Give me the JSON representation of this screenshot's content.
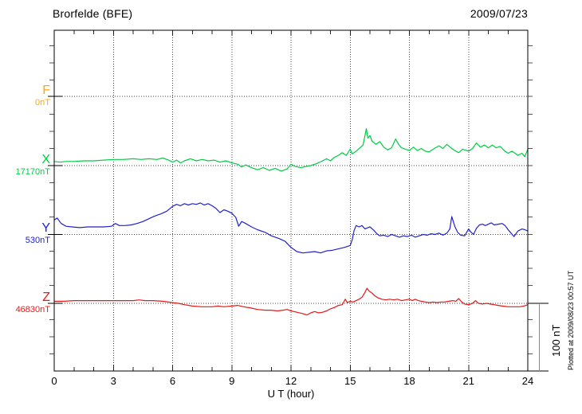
{
  "header": {
    "title": "Brorfelde (BFE)",
    "date": "2009/07/23"
  },
  "footer": {
    "plotted_at": "Plotted at 2009/08/23 00:57 UT"
  },
  "chart_data": {
    "type": "line",
    "title": "Brorfelde (BFE)",
    "date": "2009/07/23",
    "xlabel": "U T (hour)",
    "x_range": [
      0,
      24
    ],
    "x_major_ticks": [
      0,
      3,
      6,
      9,
      12,
      15,
      18,
      21,
      24
    ],
    "x_major_tick_labels": [
      "0",
      "3",
      "6",
      "9",
      "12",
      "15",
      "18",
      "21",
      "24"
    ],
    "x_minor_step_hours": 1,
    "grid": "dotted vertical lines every 3 h; dotted horizontal line at each component baseline",
    "legend_position": "left margin, one colored label per component",
    "scale_bar": {
      "label": "100 nT",
      "nT": 100
    },
    "plotted_at": "Plotted at 2009/08/23 00:57 UT",
    "value_unit": "nT (offset from the baseline value shown under each component letter)",
    "series": [
      {
        "name": "F",
        "base_label": "0nT",
        "color": "#FFAA00",
        "note": "no data plotted for F (flat dotted baseline only)",
        "points": []
      },
      {
        "name": "X",
        "base_label": "17170nT",
        "color": "#00CC44",
        "points": [
          [
            0,
            6
          ],
          [
            0.3,
            5
          ],
          [
            0.6,
            6
          ],
          [
            1,
            6
          ],
          [
            1.5,
            7
          ],
          [
            2,
            7
          ],
          [
            2.5,
            8
          ],
          [
            3,
            9
          ],
          [
            3.5,
            9
          ],
          [
            4,
            10
          ],
          [
            4.4,
            9
          ],
          [
            4.8,
            10
          ],
          [
            5.2,
            9
          ],
          [
            5.5,
            11
          ],
          [
            5.8,
            8
          ],
          [
            6,
            5
          ],
          [
            6.2,
            8
          ],
          [
            6.4,
            4
          ],
          [
            6.6,
            7
          ],
          [
            6.9,
            10
          ],
          [
            7.2,
            7
          ],
          [
            7.5,
            9
          ],
          [
            7.8,
            7
          ],
          [
            8.1,
            8
          ],
          [
            8.4,
            5
          ],
          [
            8.7,
            7
          ],
          [
            9,
            4
          ],
          [
            9.3,
            2
          ],
          [
            9.5,
            -2
          ],
          [
            9.7,
            1
          ],
          [
            10,
            -3
          ],
          [
            10.3,
            -6
          ],
          [
            10.6,
            -3
          ],
          [
            10.9,
            -7
          ],
          [
            11.2,
            -4
          ],
          [
            11.5,
            -8
          ],
          [
            11.8,
            -5
          ],
          [
            12,
            2
          ],
          [
            12.2,
            -1
          ],
          [
            12.5,
            -3
          ],
          [
            12.8,
            -1
          ],
          [
            13,
            0
          ],
          [
            13.3,
            3
          ],
          [
            13.6,
            7
          ],
          [
            13.8,
            10
          ],
          [
            14,
            7
          ],
          [
            14.2,
            12
          ],
          [
            14.4,
            15
          ],
          [
            14.6,
            19
          ],
          [
            14.8,
            15
          ],
          [
            15,
            24
          ],
          [
            15.1,
            17
          ],
          [
            15.3,
            21
          ],
          [
            15.5,
            26
          ],
          [
            15.65,
            30
          ],
          [
            15.75,
            44
          ],
          [
            15.82,
            54
          ],
          [
            15.9,
            40
          ],
          [
            16,
            44
          ],
          [
            16.1,
            36
          ],
          [
            16.3,
            31
          ],
          [
            16.5,
            35
          ],
          [
            16.7,
            27
          ],
          [
            16.9,
            23
          ],
          [
            17.1,
            26
          ],
          [
            17.3,
            39
          ],
          [
            17.45,
            31
          ],
          [
            17.6,
            26
          ],
          [
            17.8,
            24
          ],
          [
            18,
            22
          ],
          [
            18.2,
            27
          ],
          [
            18.4,
            22
          ],
          [
            18.6,
            25
          ],
          [
            18.8,
            21
          ],
          [
            19,
            20
          ],
          [
            19.2,
            24
          ],
          [
            19.5,
            29
          ],
          [
            19.7,
            25
          ],
          [
            19.9,
            31
          ],
          [
            20.1,
            26
          ],
          [
            20.3,
            22
          ],
          [
            20.5,
            19
          ],
          [
            20.7,
            24
          ],
          [
            21,
            21
          ],
          [
            21.2,
            25
          ],
          [
            21.4,
            33
          ],
          [
            21.6,
            27
          ],
          [
            21.8,
            30
          ],
          [
            22,
            26
          ],
          [
            22.2,
            30
          ],
          [
            22.4,
            26
          ],
          [
            22.6,
            28
          ],
          [
            22.8,
            22
          ],
          [
            23,
            18
          ],
          [
            23.2,
            21
          ],
          [
            23.5,
            15
          ],
          [
            23.7,
            18
          ],
          [
            23.85,
            13
          ],
          [
            24,
            24
          ]
        ]
      },
      {
        "name": "Y",
        "base_label": "530nT",
        "color": "#2222CC",
        "points": [
          [
            0,
            21
          ],
          [
            0.15,
            24
          ],
          [
            0.35,
            16
          ],
          [
            0.6,
            12
          ],
          [
            0.9,
            11
          ],
          [
            1.3,
            10
          ],
          [
            1.7,
            11
          ],
          [
            2.1,
            11
          ],
          [
            2.5,
            11
          ],
          [
            2.9,
            12
          ],
          [
            3.1,
            16
          ],
          [
            3.3,
            13
          ],
          [
            3.6,
            13
          ],
          [
            3.9,
            14
          ],
          [
            4.2,
            16
          ],
          [
            4.5,
            19
          ],
          [
            4.8,
            23
          ],
          [
            5.1,
            27
          ],
          [
            5.4,
            30
          ],
          [
            5.7,
            34
          ],
          [
            6,
            41
          ],
          [
            6.2,
            44
          ],
          [
            6.4,
            42
          ],
          [
            6.6,
            45
          ],
          [
            6.8,
            43
          ],
          [
            7,
            45
          ],
          [
            7.2,
            44
          ],
          [
            7.4,
            46
          ],
          [
            7.6,
            43
          ],
          [
            7.8,
            45
          ],
          [
            8,
            42
          ],
          [
            8.2,
            38
          ],
          [
            8.4,
            32
          ],
          [
            8.6,
            36
          ],
          [
            8.8,
            34
          ],
          [
            9,
            31
          ],
          [
            9.2,
            25
          ],
          [
            9.35,
            12
          ],
          [
            9.5,
            19
          ],
          [
            9.7,
            16
          ],
          [
            10,
            11
          ],
          [
            10.3,
            7
          ],
          [
            10.7,
            3
          ],
          [
            11,
            -2
          ],
          [
            11.4,
            -6
          ],
          [
            11.7,
            -10
          ],
          [
            12,
            -19
          ],
          [
            12.3,
            -25
          ],
          [
            12.6,
            -27
          ],
          [
            12.9,
            -26
          ],
          [
            13.2,
            -25
          ],
          [
            13.5,
            -27
          ],
          [
            13.8,
            -24
          ],
          [
            14.1,
            -23
          ],
          [
            14.4,
            -21
          ],
          [
            14.7,
            -19
          ],
          [
            15,
            -16
          ],
          [
            15.1,
            -8
          ],
          [
            15.2,
            6
          ],
          [
            15.3,
            13
          ],
          [
            15.45,
            11
          ],
          [
            15.6,
            13
          ],
          [
            15.75,
            8
          ],
          [
            15.9,
            10
          ],
          [
            16,
            11
          ],
          [
            16.2,
            6
          ],
          [
            16.35,
            1
          ],
          [
            16.5,
            -2
          ],
          [
            16.7,
            -1
          ],
          [
            16.9,
            -3
          ],
          [
            17.1,
            0
          ],
          [
            17.3,
            -2
          ],
          [
            17.5,
            -4
          ],
          [
            17.7,
            -2
          ],
          [
            17.9,
            -3
          ],
          [
            18.1,
            -1
          ],
          [
            18.3,
            -4
          ],
          [
            18.5,
            -2
          ],
          [
            18.7,
            0
          ],
          [
            18.9,
            -1
          ],
          [
            19.1,
            1
          ],
          [
            19.3,
            0
          ],
          [
            19.5,
            2
          ],
          [
            19.7,
            -1
          ],
          [
            19.9,
            2
          ],
          [
            20.05,
            8
          ],
          [
            20.15,
            26
          ],
          [
            20.3,
            12
          ],
          [
            20.45,
            3
          ],
          [
            20.6,
            -1
          ],
          [
            20.8,
            -2
          ],
          [
            21,
            8
          ],
          [
            21.1,
            4
          ],
          [
            21.25,
            0
          ],
          [
            21.4,
            9
          ],
          [
            21.55,
            14
          ],
          [
            21.7,
            15
          ],
          [
            21.85,
            13
          ],
          [
            22,
            15
          ],
          [
            22.15,
            17
          ],
          [
            22.3,
            14
          ],
          [
            22.5,
            15
          ],
          [
            22.7,
            16
          ],
          [
            22.85,
            13
          ],
          [
            23,
            7
          ],
          [
            23.15,
            2
          ],
          [
            23.3,
            -3
          ],
          [
            23.5,
            5
          ],
          [
            23.7,
            8
          ],
          [
            23.85,
            7
          ],
          [
            24,
            5
          ]
        ]
      },
      {
        "name": "Z",
        "base_label": "46830nT",
        "color": "#E81818",
        "points": [
          [
            0,
            3
          ],
          [
            0.5,
            3
          ],
          [
            1,
            4
          ],
          [
            1.5,
            4
          ],
          [
            2,
            4
          ],
          [
            2.5,
            4
          ],
          [
            3,
            4
          ],
          [
            3.5,
            4
          ],
          [
            4,
            4
          ],
          [
            4.3,
            5
          ],
          [
            4.6,
            4
          ],
          [
            5,
            4
          ],
          [
            5.5,
            3
          ],
          [
            6,
            1
          ],
          [
            6.3,
            0
          ],
          [
            6.6,
            -2
          ],
          [
            7,
            -4
          ],
          [
            7.5,
            -5
          ],
          [
            8,
            -5
          ],
          [
            8.3,
            -4
          ],
          [
            8.6,
            -5
          ],
          [
            9,
            -4
          ],
          [
            9.3,
            -3
          ],
          [
            9.6,
            -5
          ],
          [
            10,
            -7
          ],
          [
            10.3,
            -9
          ],
          [
            10.7,
            -10
          ],
          [
            11,
            -10
          ],
          [
            11.3,
            -11
          ],
          [
            11.6,
            -10
          ],
          [
            11.8,
            -9
          ],
          [
            12,
            -11
          ],
          [
            12.3,
            -13
          ],
          [
            12.6,
            -15
          ],
          [
            12.8,
            -17
          ],
          [
            13,
            -14
          ],
          [
            13.2,
            -12
          ],
          [
            13.4,
            -14
          ],
          [
            13.6,
            -13
          ],
          [
            13.8,
            -11
          ],
          [
            14,
            -8
          ],
          [
            14.2,
            -6
          ],
          [
            14.4,
            -3
          ],
          [
            14.6,
            -2
          ],
          [
            14.75,
            6
          ],
          [
            14.85,
            1
          ],
          [
            15,
            3
          ],
          [
            15.15,
            2
          ],
          [
            15.3,
            4
          ],
          [
            15.45,
            6
          ],
          [
            15.6,
            9
          ],
          [
            15.75,
            16
          ],
          [
            15.85,
            22
          ],
          [
            15.95,
            18
          ],
          [
            16.1,
            15
          ],
          [
            16.25,
            11
          ],
          [
            16.4,
            8
          ],
          [
            16.6,
            6
          ],
          [
            16.8,
            5
          ],
          [
            17,
            6
          ],
          [
            17.2,
            5
          ],
          [
            17.4,
            6
          ],
          [
            17.6,
            4
          ],
          [
            17.8,
            5
          ],
          [
            18,
            6
          ],
          [
            18.15,
            4
          ],
          [
            18.3,
            6
          ],
          [
            18.45,
            4
          ],
          [
            18.6,
            3
          ],
          [
            18.8,
            2
          ],
          [
            19,
            1
          ],
          [
            19.2,
            2
          ],
          [
            19.4,
            1
          ],
          [
            19.6,
            2
          ],
          [
            19.8,
            2
          ],
          [
            20,
            3
          ],
          [
            20.2,
            4
          ],
          [
            20.35,
            3
          ],
          [
            20.5,
            7
          ],
          [
            20.65,
            2
          ],
          [
            20.8,
            -1
          ],
          [
            21,
            -2
          ],
          [
            21.2,
            0
          ],
          [
            21.35,
            4
          ],
          [
            21.5,
            0
          ],
          [
            21.7,
            -1
          ],
          [
            21.9,
            0
          ],
          [
            22.1,
            -1
          ],
          [
            22.3,
            -2
          ],
          [
            22.5,
            -3
          ],
          [
            22.7,
            -4
          ],
          [
            23,
            -5
          ],
          [
            23.3,
            -5
          ],
          [
            23.6,
            -5
          ],
          [
            23.8,
            -4
          ],
          [
            24,
            -2
          ]
        ]
      }
    ]
  }
}
